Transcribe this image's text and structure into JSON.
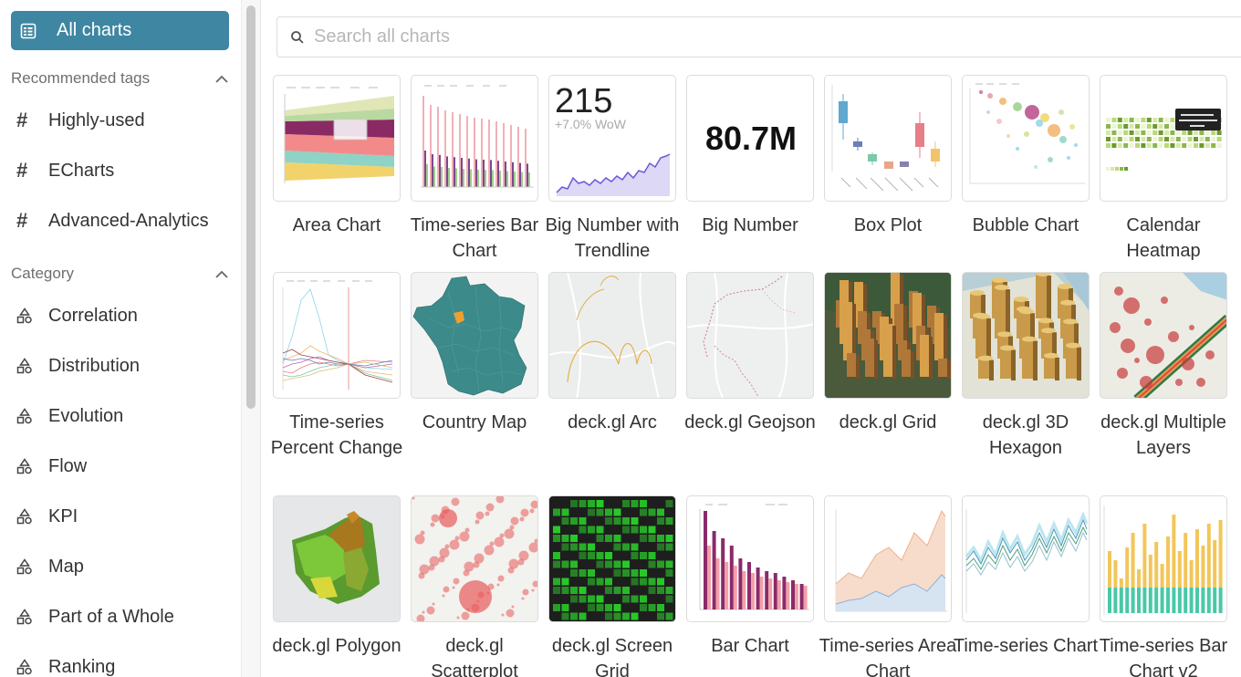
{
  "sidebar": {
    "all_charts": "All charts",
    "recommended_header": "Recommended tags",
    "tags": [
      "Highly-used",
      "ECharts",
      "Advanced-Analytics"
    ],
    "category_header": "Category",
    "categories": [
      "Correlation",
      "Distribution",
      "Evolution",
      "Flow",
      "KPI",
      "Map",
      "Part of a Whole",
      "Ranking"
    ]
  },
  "search": {
    "placeholder": "Search all charts"
  },
  "charts": [
    "Area Chart",
    "Time-series Bar Chart",
    "Big Number with Trendline",
    "Big Number",
    "Box Plot",
    "Bubble Chart",
    "Calendar Heatmap",
    "Time-series Percent Change",
    "Country Map",
    "deck.gl Arc",
    "deck.gl Geojson",
    "deck.gl Grid",
    "deck.gl 3D Hexagon",
    "deck.gl Multiple Layers",
    "deck.gl Polygon",
    "deck.gl Scatterplot",
    "deck.gl Screen Grid",
    "Bar Chart",
    "Time-series Area Chart",
    "Time-series Chart",
    "Time-series Bar Chart v2"
  ],
  "thumb_text": {
    "big_number_trend_value": "215",
    "big_number_trend_delta": "+7.0% WoW",
    "big_number_value": "80.7M"
  },
  "colors": {
    "accent": "#3e86a2"
  }
}
